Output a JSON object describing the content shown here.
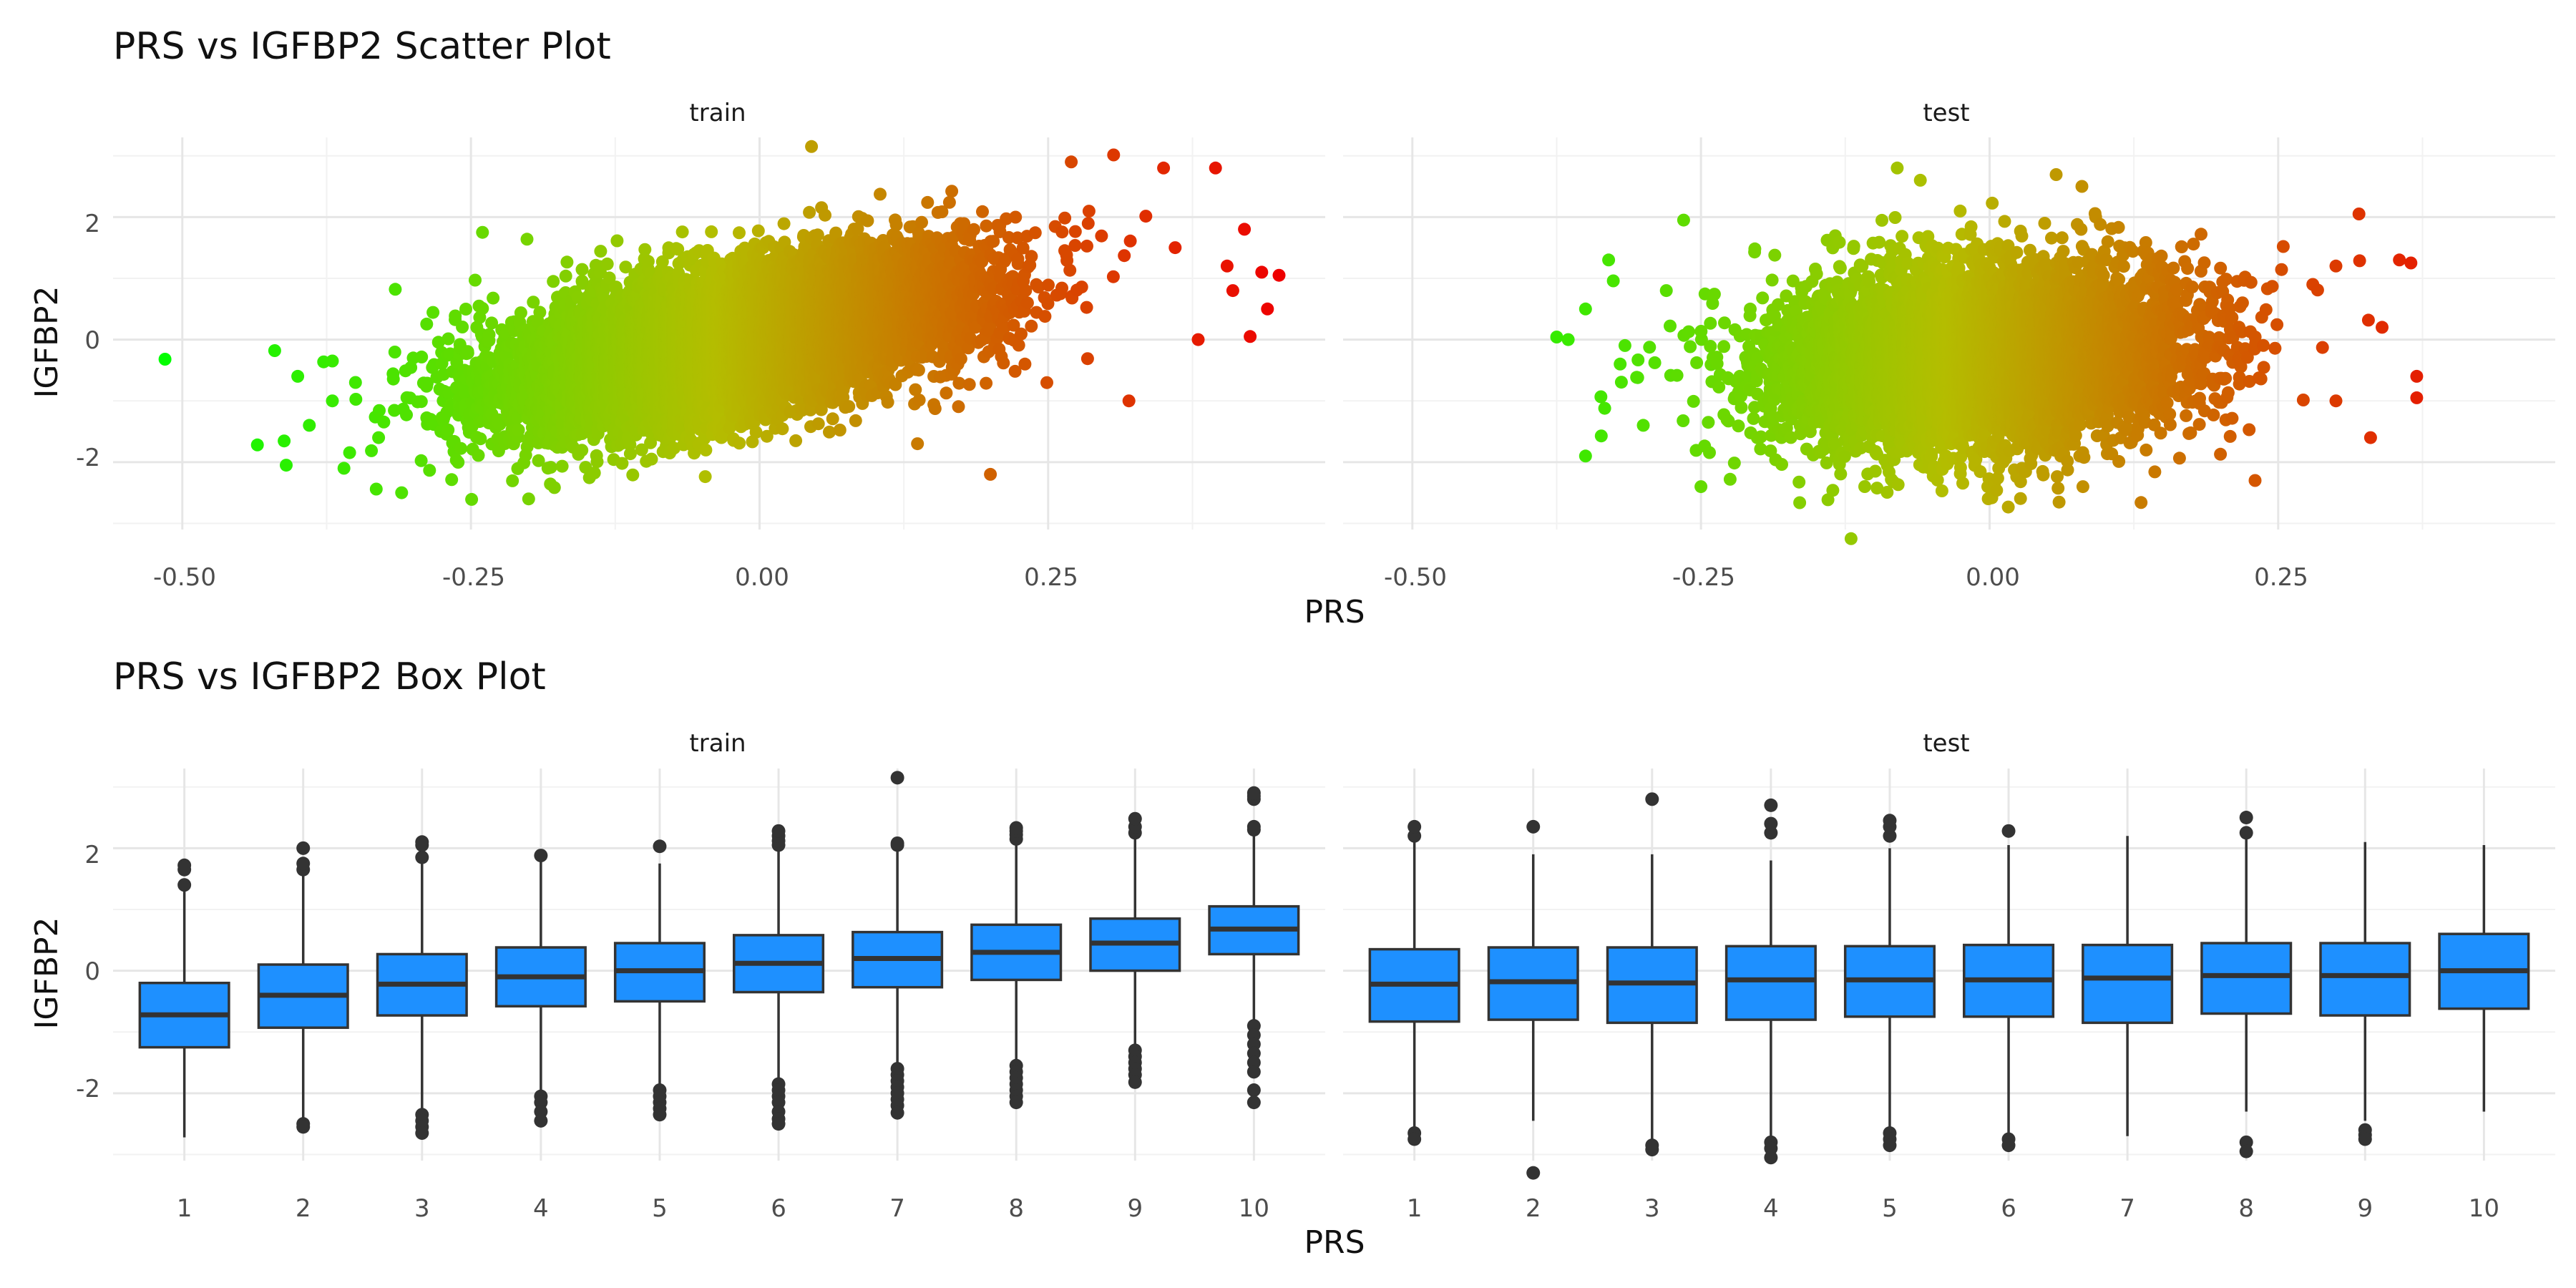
{
  "chart_data": [
    {
      "type": "scatter",
      "title": "PRS vs IGFBP2 Scatter Plot",
      "xlabel": "PRS",
      "ylabel": "IGFBP2",
      "panels": [
        "train",
        "test"
      ],
      "xlim": [
        -0.56,
        0.49
      ],
      "ylim": [
        -3.1,
        3.3
      ],
      "x_ticks": [
        -0.5,
        -0.25,
        0.0,
        0.25
      ],
      "x_tick_labels": [
        "-0.50",
        "-0.25",
        "0.00",
        "0.25"
      ],
      "y_ticks": [
        -2,
        0,
        2
      ],
      "y_tick_labels": [
        "-2",
        "0",
        "2"
      ],
      "color_scale": {
        "low": "#00ff00",
        "mid": "#b4bd00",
        "high": "#ee0000",
        "range": [
          -0.52,
          0.45
        ]
      },
      "grid": true,
      "legend": "none",
      "series": [
        {
          "panel": "train",
          "cloud": {
            "x_mean": -0.02,
            "x_sd": 0.1,
            "y_mean": 0.0,
            "y_sd": 0.85,
            "slope": 3.6,
            "n": 9000
          },
          "extreme_points": [
            {
              "x": -0.515,
              "y": -0.32
            },
            {
              "x": -0.435,
              "y": -1.72
            },
            {
              "x": -0.42,
              "y": -0.18
            },
            {
              "x": -0.41,
              "y": -2.05
            },
            {
              "x": -0.4,
              "y": -0.6
            },
            {
              "x": -0.39,
              "y": -1.4
            },
            {
              "x": -0.37,
              "y": -1.0
            },
            {
              "x": -0.36,
              "y": -2.1
            },
            {
              "x": -0.35,
              "y": -0.7
            },
            {
              "x": -0.33,
              "y": -1.6
            },
            {
              "x": -0.31,
              "y": -2.5
            },
            {
              "x": -0.3,
              "y": -0.3
            },
            {
              "x": -0.24,
              "y": 1.75
            },
            {
              "x": -0.2,
              "y": -2.6
            },
            {
              "x": 0.045,
              "y": 3.15
            },
            {
              "x": 0.27,
              "y": 2.9
            },
            {
              "x": 0.2,
              "y": -2.2
            },
            {
              "x": 0.35,
              "y": 2.8
            },
            {
              "x": 0.395,
              "y": 2.8
            },
            {
              "x": 0.405,
              "y": 1.2
            },
            {
              "x": 0.41,
              "y": 0.8
            },
            {
              "x": 0.42,
              "y": 1.8
            },
            {
              "x": 0.425,
              "y": 0.05
            },
            {
              "x": 0.435,
              "y": 1.1
            },
            {
              "x": 0.44,
              "y": 0.5
            },
            {
              "x": 0.45,
              "y": 1.05
            },
            {
              "x": 0.32,
              "y": -1.0
            },
            {
              "x": 0.38,
              "y": 0.0
            },
            {
              "x": 0.36,
              "y": 1.5
            }
          ]
        },
        {
          "panel": "test",
          "cloud": {
            "x_mean": -0.01,
            "x_sd": 0.09,
            "y_mean": -0.3,
            "y_sd": 0.72,
            "slope": 0.9,
            "n": 6500
          },
          "extreme_points": [
            {
              "x": -0.365,
              "y": 0.0
            },
            {
              "x": -0.35,
              "y": -1.9
            },
            {
              "x": -0.35,
              "y": 0.5
            },
            {
              "x": -0.33,
              "y": 1.3
            },
            {
              "x": -0.32,
              "y": -0.4
            },
            {
              "x": -0.3,
              "y": -1.4
            },
            {
              "x": -0.28,
              "y": 0.8
            },
            {
              "x": -0.265,
              "y": 1.95
            },
            {
              "x": -0.25,
              "y": -2.4
            },
            {
              "x": -0.12,
              "y": -3.25
            },
            {
              "x": -0.08,
              "y": 2.8
            },
            {
              "x": -0.06,
              "y": 2.6
            },
            {
              "x": 0.08,
              "y": 2.5
            },
            {
              "x": 0.3,
              "y": 1.2
            },
            {
              "x": 0.32,
              "y": 2.05
            },
            {
              "x": 0.33,
              "y": -1.6
            },
            {
              "x": 0.355,
              "y": 1.3
            },
            {
              "x": 0.365,
              "y": 1.25
            },
            {
              "x": 0.37,
              "y": -0.6
            },
            {
              "x": 0.37,
              "y": -0.95
            },
            {
              "x": 0.34,
              "y": 0.2
            },
            {
              "x": 0.3,
              "y": -1.0
            },
            {
              "x": 0.23,
              "y": -2.3
            },
            {
              "x": 0.28,
              "y": 0.9
            }
          ]
        }
      ]
    },
    {
      "type": "box",
      "title": "PRS vs IGFBP2 Box Plot",
      "xlabel": "PRS",
      "ylabel": "IGFBP2",
      "panels": [
        "train",
        "test"
      ],
      "categories": [
        "1",
        "2",
        "3",
        "4",
        "5",
        "6",
        "7",
        "8",
        "9",
        "10"
      ],
      "ylim": [
        -3.1,
        3.3
      ],
      "y_ticks": [
        -2,
        0,
        2
      ],
      "y_tick_labels": [
        "-2",
        "0",
        "2"
      ],
      "fill": "#1e90ff",
      "grid": true,
      "series": [
        {
          "panel": "train",
          "boxes": [
            {
              "q1": -1.25,
              "median": -0.72,
              "q3": -0.2,
              "lower": -2.72,
              "upper": 1.3,
              "outliers": [
                1.4,
                1.65,
                1.72
              ]
            },
            {
              "q1": -0.93,
              "median": -0.4,
              "q3": 0.1,
              "lower": -2.4,
              "upper": 1.55,
              "outliers": [
                1.65,
                1.75,
                2.0,
                -2.5,
                -2.55
              ]
            },
            {
              "q1": -0.73,
              "median": -0.22,
              "q3": 0.27,
              "lower": -2.25,
              "upper": 1.75,
              "outliers": [
                1.85,
                2.05,
                2.1,
                -2.35,
                -2.45,
                -2.55,
                -2.65
              ]
            },
            {
              "q1": -0.58,
              "median": -0.1,
              "q3": 0.38,
              "lower": -1.95,
              "upper": 1.78,
              "outliers": [
                1.88,
                -2.05,
                -2.15,
                -2.3,
                -2.45
              ]
            },
            {
              "q1": -0.5,
              "median": 0.0,
              "q3": 0.45,
              "lower": -1.85,
              "upper": 1.75,
              "outliers": [
                2.03,
                -1.95,
                -2.05,
                -2.15,
                -2.25,
                -2.35
              ]
            },
            {
              "q1": -0.35,
              "median": 0.12,
              "q3": 0.58,
              "lower": -1.75,
              "upper": 1.95,
              "outliers": [
                2.05,
                2.12,
                2.2,
                2.28,
                -1.85,
                -1.95,
                -2.05,
                -2.15,
                -2.3,
                -2.42,
                -2.5
              ]
            },
            {
              "q1": -0.27,
              "median": 0.2,
              "q3": 0.63,
              "lower": -1.58,
              "upper": 1.98,
              "outliers": [
                2.05,
                2.08,
                3.15,
                -1.6,
                -1.7,
                -1.8,
                -1.9,
                -2.0,
                -2.1,
                -2.2,
                -2.32
              ]
            },
            {
              "q1": -0.15,
              "median": 0.3,
              "q3": 0.75,
              "lower": -1.5,
              "upper": 2.05,
              "outliers": [
                2.15,
                2.22,
                2.28,
                2.33,
                -1.55,
                -1.65,
                -1.75,
                -1.85,
                -1.95,
                -2.05,
                -2.15
              ]
            },
            {
              "q1": 0.0,
              "median": 0.45,
              "q3": 0.85,
              "lower": -1.25,
              "upper": 2.15,
              "outliers": [
                2.25,
                2.35,
                2.48,
                -1.3,
                -1.4,
                -1.5,
                -1.6,
                -1.7,
                -1.82
              ]
            },
            {
              "q1": 0.27,
              "median": 0.68,
              "q3": 1.05,
              "lower": -0.8,
              "upper": 2.2,
              "outliers": [
                2.3,
                2.35,
                2.8,
                2.85,
                2.9,
                -0.9,
                -1.05,
                -1.2,
                -1.35,
                -1.5,
                -1.65,
                -1.95,
                -2.15
              ]
            }
          ]
        },
        {
          "panel": "test",
          "boxes": [
            {
              "q1": -0.83,
              "median": -0.22,
              "q3": 0.35,
              "lower": -2.55,
              "upper": 2.1,
              "outliers": [
                2.2,
                2.35,
                -2.65,
                -2.75
              ]
            },
            {
              "q1": -0.8,
              "median": -0.18,
              "q3": 0.38,
              "lower": -2.45,
              "upper": 1.9,
              "outliers": [
                2.35,
                -3.3
              ]
            },
            {
              "q1": -0.85,
              "median": -0.2,
              "q3": 0.38,
              "lower": -2.75,
              "upper": 1.9,
              "outliers": [
                2.8,
                -2.85,
                -2.92
              ]
            },
            {
              "q1": -0.8,
              "median": -0.15,
              "q3": 0.4,
              "lower": -2.7,
              "upper": 1.8,
              "outliers": [
                2.25,
                2.4,
                2.7,
                -2.8,
                -2.9,
                -3.05
              ]
            },
            {
              "q1": -0.75,
              "median": -0.15,
              "q3": 0.4,
              "lower": -2.55,
              "upper": 2.0,
              "outliers": [
                2.2,
                2.35,
                2.45,
                -2.65,
                -2.75,
                -2.85
              ]
            },
            {
              "q1": -0.75,
              "median": -0.15,
              "q3": 0.42,
              "lower": -2.65,
              "upper": 2.05,
              "outliers": [
                2.28,
                -2.75,
                -2.85
              ]
            },
            {
              "q1": -0.85,
              "median": -0.12,
              "q3": 0.42,
              "lower": -2.7,
              "upper": 2.2,
              "outliers": []
            },
            {
              "q1": -0.7,
              "median": -0.08,
              "q3": 0.45,
              "lower": -2.3,
              "upper": 2.15,
              "outliers": [
                2.25,
                2.5,
                -2.8,
                -2.95
              ]
            },
            {
              "q1": -0.73,
              "median": -0.08,
              "q3": 0.45,
              "lower": -2.45,
              "upper": 2.1,
              "outliers": [
                -2.6,
                -2.68,
                -2.75
              ]
            },
            {
              "q1": -0.62,
              "median": 0.0,
              "q3": 0.6,
              "lower": -2.3,
              "upper": 2.05,
              "outliers": []
            }
          ]
        }
      ]
    }
  ]
}
